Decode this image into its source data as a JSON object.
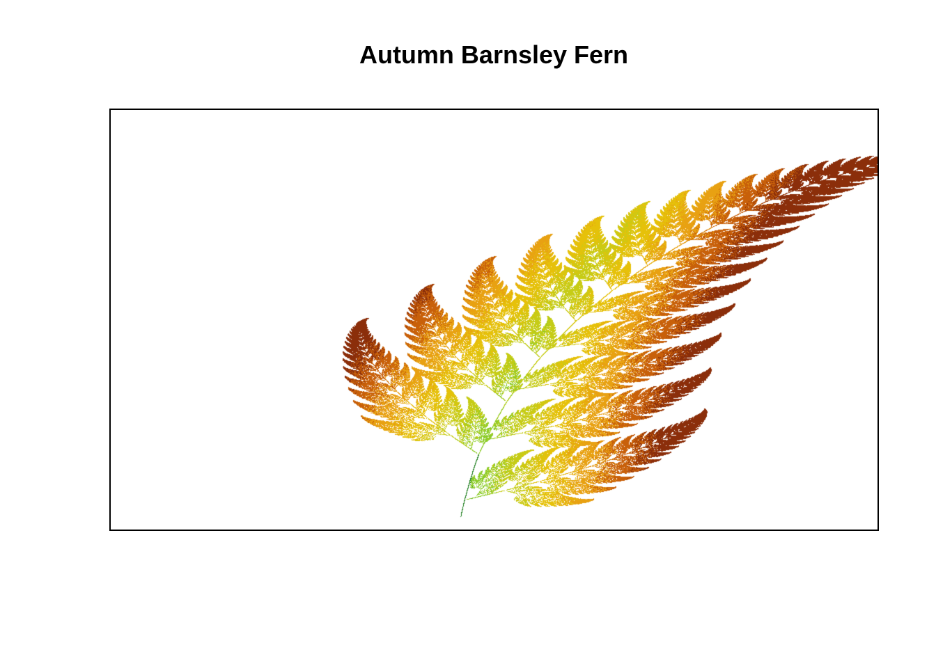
{
  "title": "Autumn Barnsley Fern",
  "fractal": {
    "ifs": [
      {
        "a": 0.0,
        "b": 0.0,
        "c": 0.0,
        "d": 0.16,
        "e": 0.0,
        "f": 0.0,
        "p": 0.01
      },
      {
        "a": 0.85,
        "b": 0.04,
        "c": -0.04,
        "d": 0.85,
        "e": 0.0,
        "f": 1.6,
        "p": 0.85
      },
      {
        "a": 0.2,
        "b": -0.26,
        "c": 0.23,
        "d": 0.22,
        "e": 0.0,
        "f": 1.6,
        "p": 0.07
      },
      {
        "a": -0.15,
        "b": 0.28,
        "c": 0.26,
        "d": 0.24,
        "e": 0.0,
        "f": 0.44,
        "p": 0.07
      }
    ],
    "x_range": [
      -2.2,
      2.7
    ],
    "y_range": [
      0.0,
      10.0
    ],
    "palette": [
      "#1f7f1f",
      "#8ccc2a",
      "#c6cc16",
      "#e6c10a",
      "#e8a112",
      "#c8600a",
      "#8b2e0a"
    ]
  }
}
